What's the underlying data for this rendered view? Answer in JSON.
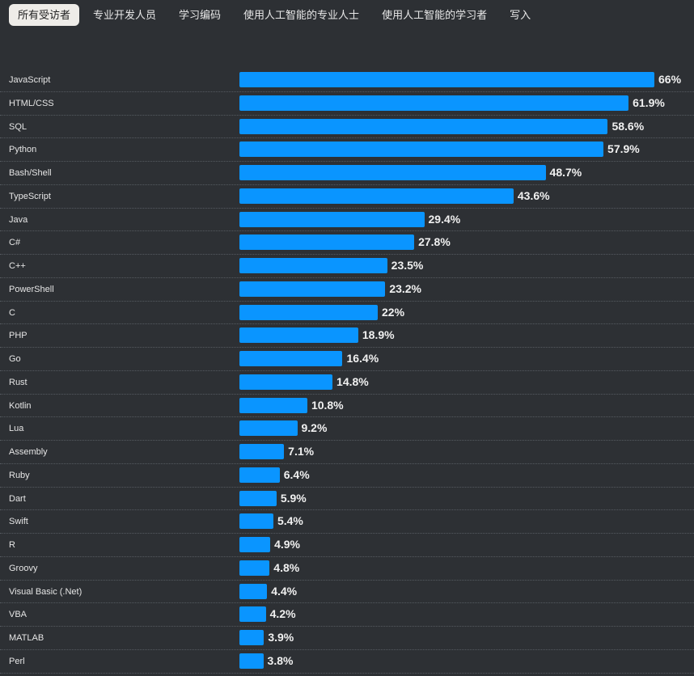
{
  "tabs": [
    {
      "label": "所有受访者",
      "active": true
    },
    {
      "label": "专业开发人员",
      "active": false
    },
    {
      "label": "学习编码",
      "active": false
    },
    {
      "label": "使用人工智能的专业人士",
      "active": false
    },
    {
      "label": "使用人工智能的学习者",
      "active": false
    },
    {
      "label": "写入",
      "active": false
    }
  ],
  "colors": {
    "bar": "#0a95ff",
    "background": "#2d3034"
  },
  "chart_data": {
    "type": "bar",
    "orientation": "horizontal",
    "unit": "%",
    "categories": [
      "JavaScript",
      "HTML/CSS",
      "SQL",
      "Python",
      "Bash/Shell",
      "TypeScript",
      "Java",
      "C#",
      "C++",
      "PowerShell",
      "C",
      "PHP",
      "Go",
      "Rust",
      "Kotlin",
      "Lua",
      "Assembly",
      "Ruby",
      "Dart",
      "Swift",
      "R",
      "Groovy",
      "Visual Basic (.Net)",
      "VBA",
      "MATLAB",
      "Perl"
    ],
    "values": [
      66,
      61.9,
      58.6,
      57.9,
      48.7,
      43.6,
      29.4,
      27.8,
      23.5,
      23.2,
      22,
      18.9,
      16.4,
      14.8,
      10.8,
      9.2,
      7.1,
      6.4,
      5.9,
      5.4,
      4.9,
      4.8,
      4.4,
      4.2,
      3.9,
      3.8
    ],
    "labels": [
      "66%",
      "61.9%",
      "58.6%",
      "57.9%",
      "48.7%",
      "43.6%",
      "29.4%",
      "27.8%",
      "23.5%",
      "23.2%",
      "22%",
      "18.9%",
      "16.4%",
      "14.8%",
      "10.8%",
      "9.2%",
      "7.1%",
      "6.4%",
      "5.9%",
      "5.4%",
      "4.9%",
      "4.8%",
      "4.4%",
      "4.2%",
      "3.9%",
      "3.8%"
    ]
  }
}
